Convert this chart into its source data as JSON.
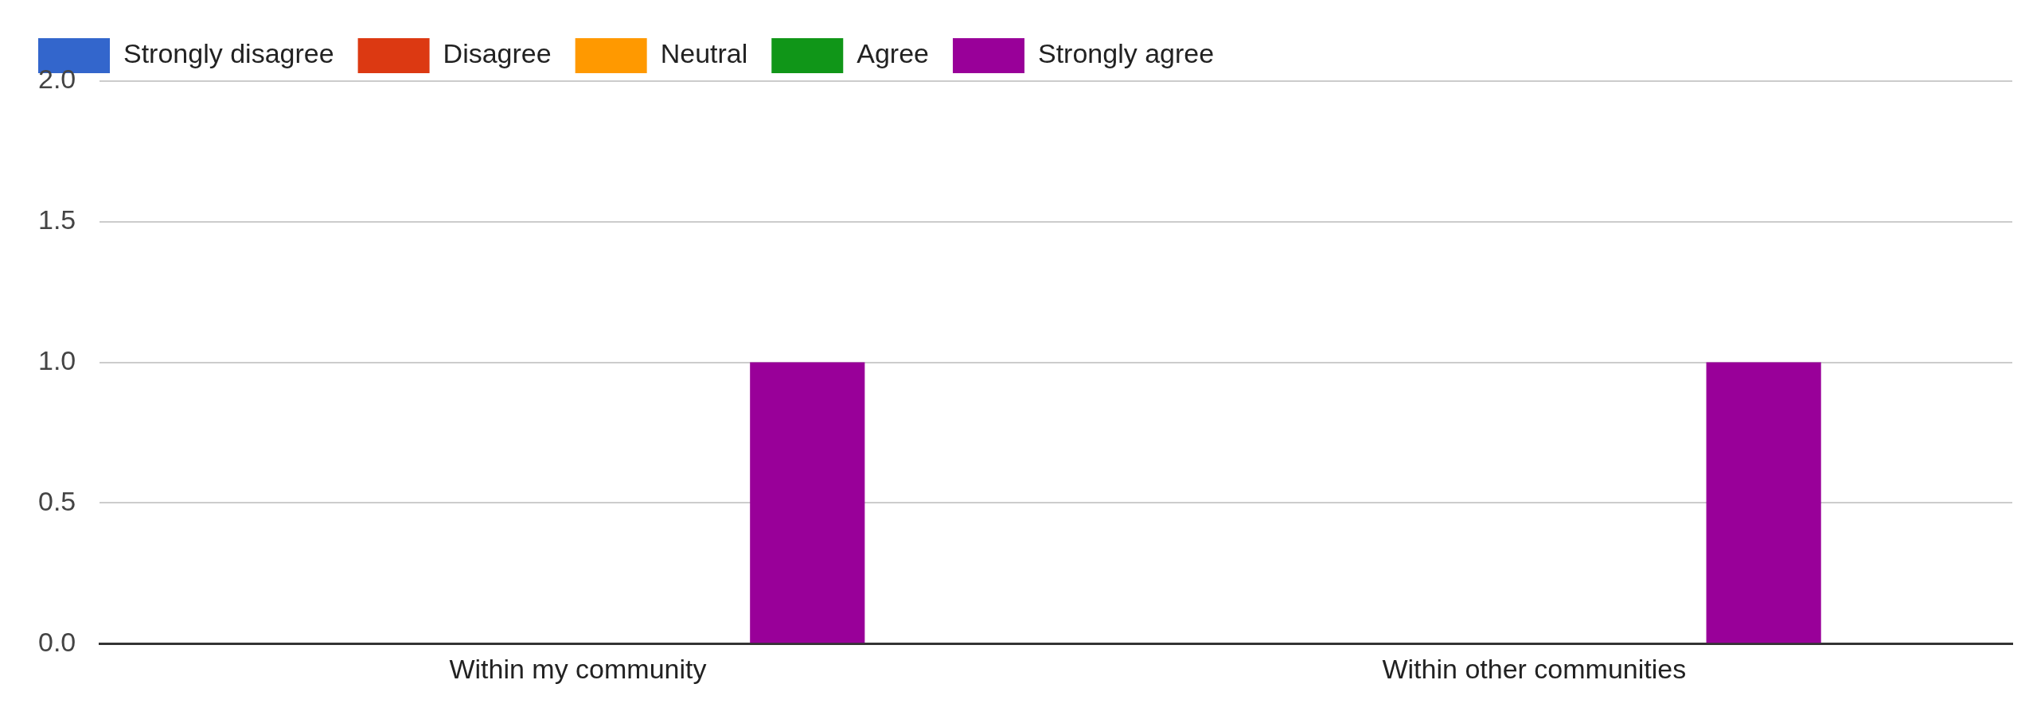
{
  "chart_data": {
    "type": "bar",
    "categories": [
      "Within my community",
      "Within other communities"
    ],
    "series": [
      {
        "name": "Strongly disagree",
        "color": "#3366cc",
        "values": [
          0,
          0
        ]
      },
      {
        "name": "Disagree",
        "color": "#dc3912",
        "values": [
          0,
          0
        ]
      },
      {
        "name": "Neutral",
        "color": "#ff9900",
        "values": [
          0,
          0
        ]
      },
      {
        "name": "Agree",
        "color": "#109618",
        "values": [
          0,
          0
        ]
      },
      {
        "name": "Strongly agree",
        "color": "#990099",
        "values": [
          1,
          1
        ]
      }
    ],
    "ylim": [
      0,
      2
    ],
    "yticks": [
      {
        "value": 0,
        "label": "0.0"
      },
      0.5,
      {
        "value": 1,
        "label": "1.0"
      },
      1.5,
      {
        "value": 2,
        "label": "2.0"
      }
    ],
    "grid": "y",
    "legend": "top left"
  }
}
